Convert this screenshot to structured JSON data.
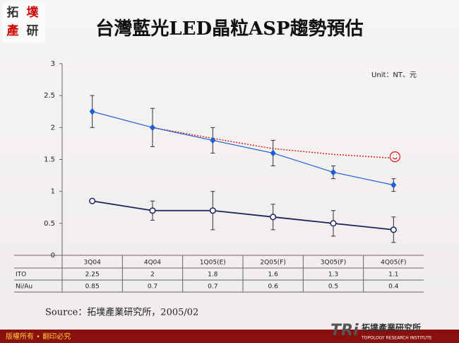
{
  "slide": {
    "logo": [
      "拓",
      "墣",
      "產",
      "研"
    ],
    "footer": "版權所有 • 翻印必究",
    "brand_mark": "TRi",
    "brand_name": "拓墣產業研究所",
    "brand_english": "TOPOLOGY RESEARCH INSTITUTE",
    "source": "Source：拓墣產業研究所，2005/02"
  },
  "chart_data": {
    "type": "line",
    "title": "台灣藍光LED晶粒ASP趨勢預估",
    "unit": "Unit：NT、元",
    "categories": [
      "3Q04",
      "4Q04",
      "1Q05(E)",
      "2Q05(F)",
      "3Q05(F)",
      "4Q05(F)"
    ],
    "ylim": [
      0,
      3
    ],
    "yticks": [
      0,
      0.5,
      1,
      1.5,
      2,
      2.5,
      3
    ],
    "grid": false,
    "series": [
      {
        "name": "ITO",
        "color": "#1f5fd6",
        "marker": "diamond",
        "values": [
          2.25,
          2,
          1.8,
          1.6,
          1.3,
          1.1
        ],
        "errors": [
          0.25,
          0.3,
          0.2,
          0.2,
          0.1,
          0.1
        ]
      },
      {
        "name": "Ni/Au",
        "color": "#1a2560",
        "marker": "circle",
        "values": [
          0.85,
          0.7,
          0.7,
          0.6,
          0.5,
          0.4
        ],
        "errors": [
          0.03,
          0.15,
          0.3,
          0.2,
          0.2,
          0.2
        ]
      }
    ],
    "trend": {
      "color": "#e02020",
      "values": [
        null,
        2,
        1.83,
        1.67,
        1.58,
        1.52
      ]
    }
  }
}
